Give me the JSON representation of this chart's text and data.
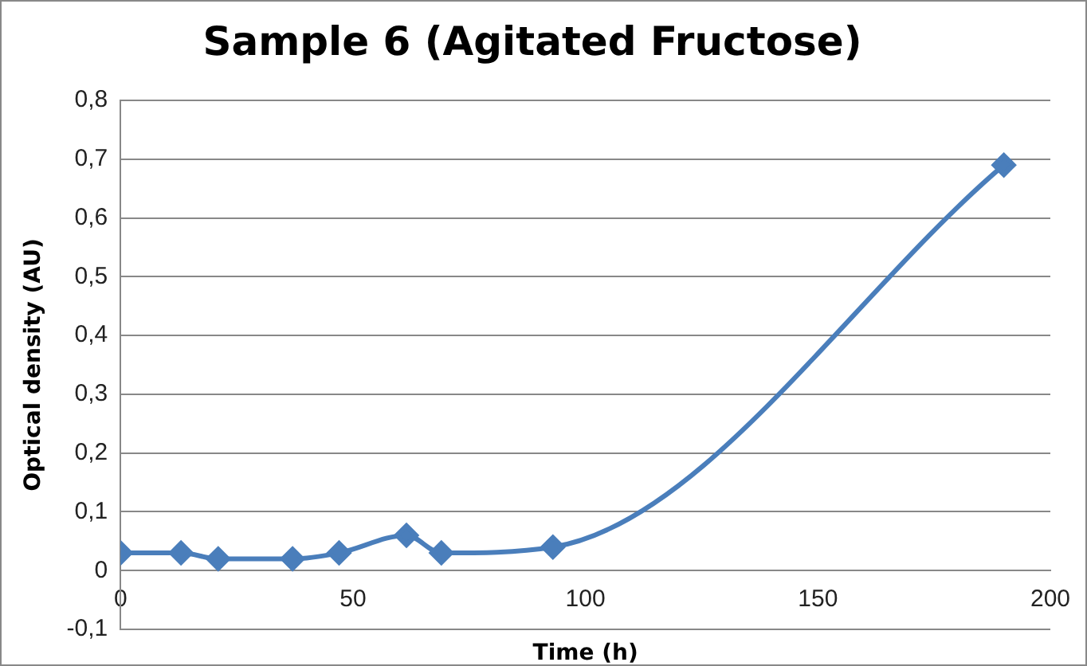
{
  "chart_data": {
    "type": "line",
    "title": "Sample 6 (Agitated Fructose)",
    "xlabel": "Time (h)",
    "ylabel": "Optical density (AU)",
    "x": [
      0,
      13,
      21,
      37,
      47,
      61.5,
      69,
      93,
      190
    ],
    "series": [
      {
        "color": "#4a7ebb",
        "values": [
          0.03,
          0.03,
          0.02,
          0.02,
          0.03,
          0.06,
          0.03,
          0.04,
          0.69
        ]
      }
    ],
    "xlim": [
      0,
      200
    ],
    "xticks": [
      0,
      50,
      100,
      150,
      200
    ],
    "ylim": [
      -0.1,
      0.8
    ],
    "yticks": [
      {
        "value": -0.1,
        "label": "-0,1"
      },
      0,
      {
        "value": 0.1,
        "label": "0,1"
      },
      {
        "value": 0.2,
        "label": "0,2"
      },
      {
        "value": 0.3,
        "label": "0,3"
      },
      {
        "value": 0.4,
        "label": "0,4"
      },
      {
        "value": 0.5,
        "label": "0,5"
      },
      {
        "value": 0.6,
        "label": "0,6"
      },
      {
        "value": 0.7,
        "label": "0,7"
      },
      {
        "value": 0.8,
        "label": "0,8"
      }
    ],
    "grid": "y",
    "legend": false,
    "marker": "diamond",
    "line_style": "solid"
  }
}
